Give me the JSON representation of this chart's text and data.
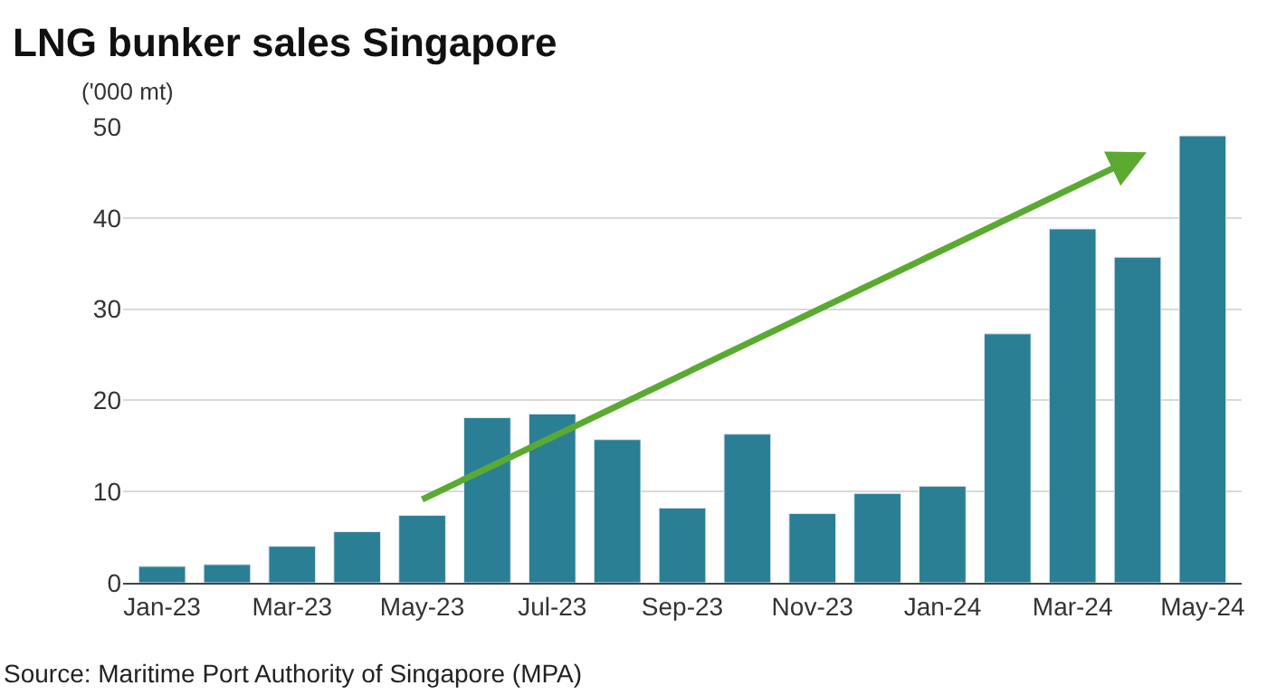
{
  "chart_data": {
    "type": "bar",
    "title": "LNG bunker sales Singapore",
    "ylabel": "('000 mt)",
    "categories": [
      "Jan-23",
      null,
      "Mar-23",
      null,
      "May-23",
      null,
      "Jul-23",
      null,
      "Sep-23",
      null,
      "Nov-23",
      null,
      "Jan-24",
      null,
      "Mar-24",
      null,
      "May-24"
    ],
    "series": [
      {
        "color": "#2b7f95",
        "values": [
          1.8,
          2,
          4,
          5.6,
          7.4,
          18.1,
          18.5,
          15.7,
          8.2,
          16.3,
          7.6,
          9.8,
          10.6,
          27.3,
          38.8,
          35.7,
          49
        ]
      }
    ],
    "ylim": [
      0,
      50
    ],
    "yticks": [
      0,
      10,
      20,
      30,
      40,
      50
    ],
    "grid": "y",
    "annotations": [
      "Source: Maritime Port Authority of Singapore (MPA)"
    ]
  }
}
